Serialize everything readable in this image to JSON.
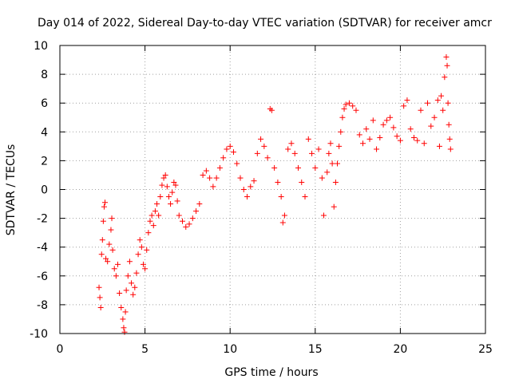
{
  "chart_data": {
    "type": "scatter",
    "title": "Day 014 of 2022, Sidereal Day-to-day VTEC variation (SDTVAR) for receiver amcr",
    "xlabel": "GPS time / hours",
    "ylabel": "SDTVAR / TECUs",
    "xlim": [
      0,
      25
    ],
    "ylim": [
      -10,
      10
    ],
    "x_ticks": [
      "0",
      "5",
      "10",
      "15",
      "20",
      "25"
    ],
    "y_ticks": [
      "-10",
      "-8",
      "-6",
      "-4",
      "-2",
      "0",
      "2",
      "4",
      "6",
      "8",
      "10"
    ],
    "grid": true,
    "marker": "+",
    "series_color": "#ff0000",
    "series": [
      {
        "points": [
          [
            2.3,
            -6.8
          ],
          [
            2.35,
            -7.5
          ],
          [
            2.4,
            -8.2
          ],
          [
            2.45,
            -4.5
          ],
          [
            2.5,
            -3.5
          ],
          [
            2.55,
            -2.2
          ],
          [
            2.6,
            -1.2
          ],
          [
            2.65,
            -0.9
          ],
          [
            2.7,
            -4.8
          ],
          [
            2.8,
            -5.0
          ],
          [
            2.9,
            -3.8
          ],
          [
            3.0,
            -2.8
          ],
          [
            3.05,
            -2.0
          ],
          [
            3.1,
            -4.2
          ],
          [
            3.2,
            -5.5
          ],
          [
            3.3,
            -6.0
          ],
          [
            3.4,
            -5.2
          ],
          [
            3.5,
            -7.2
          ],
          [
            3.6,
            -8.2
          ],
          [
            3.7,
            -9.0
          ],
          [
            3.75,
            -9.6
          ],
          [
            3.8,
            -9.9
          ],
          [
            3.85,
            -8.5
          ],
          [
            3.9,
            -7.0
          ],
          [
            4.0,
            -6.0
          ],
          [
            4.1,
            -5.0
          ],
          [
            4.2,
            -6.5
          ],
          [
            4.3,
            -7.3
          ],
          [
            4.4,
            -6.8
          ],
          [
            4.5,
            -5.8
          ],
          [
            4.6,
            -4.5
          ],
          [
            4.7,
            -3.5
          ],
          [
            4.8,
            -4.0
          ],
          [
            4.9,
            -5.2
          ],
          [
            5.0,
            -5.5
          ],
          [
            5.1,
            -4.2
          ],
          [
            5.2,
            -3.0
          ],
          [
            5.3,
            -2.2
          ],
          [
            5.4,
            -1.8
          ],
          [
            5.5,
            -2.5
          ],
          [
            5.6,
            -1.5
          ],
          [
            5.7,
            -1.0
          ],
          [
            5.8,
            -1.8
          ],
          [
            5.9,
            -0.5
          ],
          [
            6.0,
            0.3
          ],
          [
            6.1,
            0.8
          ],
          [
            6.2,
            1.0
          ],
          [
            6.3,
            0.2
          ],
          [
            6.4,
            -0.5
          ],
          [
            6.5,
            -1.0
          ],
          [
            6.6,
            -0.2
          ],
          [
            6.7,
            0.5
          ],
          [
            6.8,
            0.3
          ],
          [
            6.9,
            -0.8
          ],
          [
            7.0,
            -1.8
          ],
          [
            7.2,
            -2.2
          ],
          [
            7.4,
            -2.6
          ],
          [
            7.6,
            -2.4
          ],
          [
            7.8,
            -2.0
          ],
          [
            8.0,
            -1.5
          ],
          [
            8.2,
            -1.0
          ],
          [
            8.4,
            1.0
          ],
          [
            8.6,
            1.3
          ],
          [
            8.8,
            0.8
          ],
          [
            9.0,
            0.2
          ],
          [
            9.2,
            0.8
          ],
          [
            9.4,
            1.5
          ],
          [
            9.6,
            2.2
          ],
          [
            9.8,
            2.8
          ],
          [
            10.0,
            3.0
          ],
          [
            10.2,
            2.6
          ],
          [
            10.4,
            1.8
          ],
          [
            10.6,
            0.8
          ],
          [
            10.8,
            0.0
          ],
          [
            11.0,
            -0.5
          ],
          [
            11.2,
            0.2
          ],
          [
            11.4,
            0.6
          ],
          [
            11.6,
            2.5
          ],
          [
            11.8,
            3.5
          ],
          [
            12.0,
            3.0
          ],
          [
            12.2,
            2.2
          ],
          [
            12.35,
            5.6
          ],
          [
            12.45,
            5.5
          ],
          [
            12.6,
            1.5
          ],
          [
            12.8,
            0.5
          ],
          [
            13.0,
            -0.5
          ],
          [
            13.1,
            -2.3
          ],
          [
            13.2,
            -1.8
          ],
          [
            13.4,
            2.8
          ],
          [
            13.6,
            3.2
          ],
          [
            13.8,
            2.5
          ],
          [
            14.0,
            1.5
          ],
          [
            14.2,
            0.5
          ],
          [
            14.4,
            -0.5
          ],
          [
            14.6,
            3.5
          ],
          [
            14.8,
            2.5
          ],
          [
            15.0,
            1.5
          ],
          [
            15.2,
            2.8
          ],
          [
            15.4,
            0.8
          ],
          [
            15.5,
            -1.8
          ],
          [
            15.7,
            1.2
          ],
          [
            15.8,
            2.5
          ],
          [
            15.9,
            3.2
          ],
          [
            16.0,
            1.8
          ],
          [
            16.1,
            -1.2
          ],
          [
            16.2,
            0.5
          ],
          [
            16.3,
            1.8
          ],
          [
            16.4,
            3.0
          ],
          [
            16.5,
            4.0
          ],
          [
            16.6,
            5.0
          ],
          [
            16.7,
            5.6
          ],
          [
            16.8,
            5.9
          ],
          [
            17.0,
            6.0
          ],
          [
            17.2,
            5.8
          ],
          [
            17.4,
            5.5
          ],
          [
            17.6,
            3.8
          ],
          [
            17.8,
            3.2
          ],
          [
            18.0,
            4.2
          ],
          [
            18.2,
            3.5
          ],
          [
            18.4,
            4.8
          ],
          [
            18.6,
            2.8
          ],
          [
            18.8,
            3.6
          ],
          [
            19.0,
            4.5
          ],
          [
            19.2,
            4.8
          ],
          [
            19.4,
            5.0
          ],
          [
            19.6,
            4.3
          ],
          [
            19.8,
            3.7
          ],
          [
            20.0,
            3.4
          ],
          [
            20.2,
            5.8
          ],
          [
            20.4,
            6.2
          ],
          [
            20.6,
            4.2
          ],
          [
            20.8,
            3.6
          ],
          [
            21.0,
            3.4
          ],
          [
            21.2,
            5.5
          ],
          [
            21.4,
            3.2
          ],
          [
            21.6,
            6.0
          ],
          [
            21.8,
            4.4
          ],
          [
            22.0,
            5.0
          ],
          [
            22.2,
            6.2
          ],
          [
            22.3,
            3.0
          ],
          [
            22.4,
            6.5
          ],
          [
            22.5,
            5.5
          ],
          [
            22.6,
            7.8
          ],
          [
            22.7,
            9.2
          ],
          [
            22.75,
            8.6
          ],
          [
            22.8,
            6.0
          ],
          [
            22.85,
            4.5
          ],
          [
            22.9,
            3.5
          ],
          [
            22.95,
            2.8
          ]
        ]
      }
    ]
  }
}
